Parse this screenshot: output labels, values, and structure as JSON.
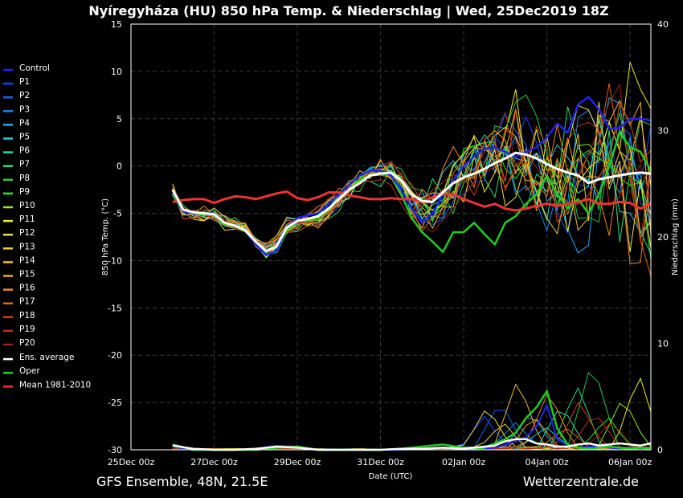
{
  "chart_data": {
    "type": "line",
    "title": "Nyíregyháza  (HU)  850 hPa Temp. & Niederschlag | Wed, 25Dec2019 18Z",
    "ylabel": "850 hPa Temp. (°C)",
    "y2label": "Niederschlag (mm)",
    "xlabel": "Date (UTC)",
    "ylim": [
      -30,
      15
    ],
    "y2lim": [
      0,
      40
    ],
    "yticks": [
      "15",
      "10",
      "5",
      "0",
      "-5",
      "-10",
      "-15",
      "-20",
      "-25",
      "-30"
    ],
    "y2ticks": [
      "40",
      "30",
      "20",
      "10",
      "0"
    ],
    "xlim_days": [
      0,
      12.5
    ],
    "xticks": [
      {
        "day": 0,
        "label": "25Dec 00z"
      },
      {
        "day": 2,
        "label": "27Dec 00z"
      },
      {
        "day": 4,
        "label": "29Dec 00z"
      },
      {
        "day": 6,
        "label": "31Dec 00z"
      },
      {
        "day": 8,
        "label": "02Jan 00z"
      },
      {
        "day": 10,
        "label": "04Jan 00z"
      },
      {
        "day": 12,
        "label": "06Jan 00z"
      }
    ],
    "grid": true,
    "legend_position": "left",
    "legend": [
      {
        "label": "Control",
        "color": "#2222ee"
      },
      {
        "label": "P1",
        "color": "#1144ff"
      },
      {
        "label": "P2",
        "color": "#1166ee"
      },
      {
        "label": "P3",
        "color": "#1188ee"
      },
      {
        "label": "P4",
        "color": "#22aaee"
      },
      {
        "label": "P5",
        "color": "#22ccdd"
      },
      {
        "label": "P6",
        "color": "#22ddaa"
      },
      {
        "label": "P7",
        "color": "#22dd77"
      },
      {
        "label": "P8",
        "color": "#22cc44"
      },
      {
        "label": "P9",
        "color": "#22ee22"
      },
      {
        "label": "P10",
        "color": "#88ee22"
      },
      {
        "label": "P11",
        "color": "#eeee22"
      },
      {
        "label": "P12",
        "color": "#eedd55"
      },
      {
        "label": "P13",
        "color": "#eecc33"
      },
      {
        "label": "P14",
        "color": "#eebb33"
      },
      {
        "label": "P15",
        "color": "#eeaa11"
      },
      {
        "label": "P16",
        "color": "#ee8822"
      },
      {
        "label": "P17",
        "color": "#dd6611"
      },
      {
        "label": "P18",
        "color": "#cc4411"
      },
      {
        "label": "P19",
        "color": "#bb3311"
      },
      {
        "label": "P20",
        "color": "#992211"
      },
      {
        "label": "Ens. average",
        "color": "#ffffff"
      },
      {
        "label": "Oper",
        "color": "#22cc22"
      },
      {
        "label": "Mean 1981-2010",
        "color": "#ee3333"
      }
    ],
    "x_days": [
      1,
      1.25,
      1.5,
      1.75,
      2,
      2.25,
      2.5,
      2.75,
      3,
      3.25,
      3.5,
      3.75,
      4,
      4.25,
      4.5,
      4.75,
      5,
      5.25,
      5.5,
      5.75,
      6,
      6.25,
      6.5,
      6.75,
      7,
      7.25,
      7.5,
      7.75,
      8,
      8.25,
      8.5,
      8.75,
      9,
      9.25,
      9.5,
      9.75,
      10,
      10.25,
      10.5,
      10.75,
      11,
      11.25,
      11.5,
      11.75,
      12,
      12.25,
      12.5
    ],
    "series": [
      {
        "name": "Control",
        "color": "#2222ee",
        "width": 2.5,
        "values": [
          -2.6,
          -4.8,
          -5.0,
          -5.0,
          -5.0,
          -6.0,
          -6.3,
          -6.8,
          -8.3,
          -9.4,
          -9.0,
          -6.5,
          -5.5,
          -5.2,
          -5.0,
          -4.0,
          -3.0,
          -2.0,
          -1.0,
          -0.5,
          -0.5,
          -1.0,
          -2.5,
          -4.5,
          -6.0,
          -5.0,
          -3.0,
          -1.5,
          0.0,
          1.0,
          1.8,
          2.0,
          1.5,
          1.0,
          1.5,
          2.0,
          3.0,
          4.5,
          3.5,
          6.5,
          7.3,
          6.0,
          4.0,
          4.0,
          5.0,
          5.0,
          4.8
        ]
      },
      {
        "name": "Ens. average",
        "color": "#ffffff",
        "width": 3,
        "values": [
          -2.5,
          -4.6,
          -4.9,
          -5.0,
          -5.1,
          -6.0,
          -6.3,
          -6.8,
          -8.0,
          -9.0,
          -8.5,
          -6.5,
          -5.8,
          -5.6,
          -5.3,
          -4.5,
          -3.5,
          -2.5,
          -1.8,
          -1.0,
          -0.8,
          -0.7,
          -1.5,
          -3.0,
          -3.7,
          -3.8,
          -2.8,
          -1.8,
          -1.2,
          -0.8,
          -0.3,
          0.3,
          0.8,
          1.4,
          1.2,
          0.8,
          0.2,
          -0.3,
          -0.7,
          -1.0,
          -1.8,
          -1.4,
          -1.2,
          -1.0,
          -0.8,
          -0.7,
          -0.8
        ]
      },
      {
        "name": "Oper",
        "color": "#22cc22",
        "width": 2.5,
        "values": [
          -3.0,
          -4.8,
          -5.0,
          -5.1,
          -5.2,
          -6.1,
          -6.4,
          -6.9,
          -8.2,
          -9.3,
          -9.1,
          -6.8,
          -5.8,
          -5.7,
          -5.5,
          -4.6,
          -3.5,
          -2.5,
          -1.5,
          -1.0,
          -0.8,
          -1.0,
          -3.0,
          -5.5,
          -7.0,
          -8.0,
          -9.1,
          -7.0,
          -7.0,
          -6.0,
          -7.2,
          -8.3,
          -6.0,
          -5.3,
          -4.0,
          -3.0,
          -1.0,
          -3.0,
          -4.5,
          -3.5,
          -5.0,
          -3.0,
          0.0,
          3.5,
          2.0,
          1.5,
          -0.5
        ]
      },
      {
        "name": "Mean 1981-2010",
        "color": "#ee3333",
        "width": 3,
        "values": [
          -3.8,
          -3.6,
          -3.5,
          -3.5,
          -3.9,
          -3.5,
          -3.2,
          -3.3,
          -3.5,
          -3.2,
          -2.9,
          -2.7,
          -3.4,
          -3.6,
          -3.3,
          -2.8,
          -2.8,
          -3.1,
          -3.3,
          -3.5,
          -3.5,
          -3.4,
          -3.5,
          -3.5,
          -3.8,
          -3.3,
          -3.0,
          -3.0,
          -3.5,
          -3.9,
          -4.3,
          -4.0,
          -4.5,
          -4.7,
          -4.5,
          -4.2,
          -4.0,
          -4.2,
          -4.0,
          -3.8,
          -3.5,
          -4.0,
          -4.0,
          -3.8,
          -3.9,
          -4.5,
          -4.0
        ]
      }
    ],
    "members": [
      {
        "color": "#1144ff",
        "spread": 1.0,
        "seed": 1,
        "phase": 0.3
      },
      {
        "color": "#1166ee",
        "spread": 1.2,
        "seed": 2,
        "phase": 1.1
      },
      {
        "color": "#1188ee",
        "spread": 1.4,
        "seed": 3,
        "phase": 2.0
      },
      {
        "color": "#22aaee",
        "spread": 1.6,
        "seed": 4,
        "phase": 0.7
      },
      {
        "color": "#22ccdd",
        "spread": 1.3,
        "seed": 5,
        "phase": 2.6
      },
      {
        "color": "#22ddaa",
        "spread": 1.1,
        "seed": 6,
        "phase": 1.5
      },
      {
        "color": "#22dd77",
        "spread": 1.7,
        "seed": 7,
        "phase": 3.1
      },
      {
        "color": "#22cc44",
        "spread": 1.5,
        "seed": 8,
        "phase": 0.1
      },
      {
        "color": "#22ee22",
        "spread": 1.2,
        "seed": 9,
        "phase": 1.9
      },
      {
        "color": "#88ee22",
        "spread": 1.0,
        "seed": 10,
        "phase": 2.3
      },
      {
        "color": "#eeee22",
        "spread": 1.8,
        "seed": 11,
        "phase": 0.5
      },
      {
        "color": "#eedd55",
        "spread": 1.4,
        "seed": 12,
        "phase": 2.9
      },
      {
        "color": "#eecc33",
        "spread": 1.6,
        "seed": 13,
        "phase": 1.3
      },
      {
        "color": "#eebb33",
        "spread": 1.3,
        "seed": 14,
        "phase": 0.9
      },
      {
        "color": "#eeaa11",
        "spread": 1.1,
        "seed": 15,
        "phase": 2.1
      },
      {
        "color": "#ee8822",
        "spread": 1.5,
        "seed": 16,
        "phase": 3.3
      },
      {
        "color": "#dd6611",
        "spread": 1.9,
        "seed": 17,
        "phase": 1.7
      },
      {
        "color": "#cc4411",
        "spread": 1.2,
        "seed": 18,
        "phase": 0.4
      },
      {
        "color": "#bb3311",
        "spread": 1.6,
        "seed": 19,
        "phase": 2.7
      },
      {
        "color": "#992211",
        "spread": 1.4,
        "seed": 20,
        "phase": 1.0
      }
    ],
    "precip_mm": {
      "x_days": [
        1,
        1.5,
        2,
        2.5,
        3,
        3.5,
        4,
        4.5,
        5,
        5.5,
        6,
        6.5,
        7,
        7.5,
        8,
        8.25,
        8.5,
        8.75,
        9,
        9.25,
        9.5,
        9.75,
        10,
        10.25,
        10.5,
        10.75,
        11,
        11.25,
        11.5,
        11.75,
        12,
        12.25,
        12.5
      ],
      "ens_average": [
        0.4,
        0.1,
        0,
        0,
        0.1,
        0.3,
        0.2,
        0,
        0,
        0,
        0,
        0.1,
        0.1,
        0.2,
        0.1,
        0.2,
        0.3,
        0.4,
        0.8,
        1.0,
        1.0,
        0.6,
        0.5,
        0.3,
        0.3,
        0.5,
        0.6,
        0.4,
        0.5,
        0.6,
        0.5,
        0.4,
        0.6
      ],
      "oper": [
        0.5,
        0,
        0,
        0,
        0,
        0.2,
        0.3,
        0,
        0,
        0,
        0,
        0.1,
        0.3,
        0.5,
        0.2,
        0.1,
        0.2,
        0.6,
        1.0,
        1.6,
        3.0,
        4.0,
        5.5,
        2.0,
        0.5,
        0.2,
        0.1,
        0.2,
        0.3,
        0.2,
        0.1,
        0.2,
        0.1
      ],
      "control": [
        0.3,
        0,
        0,
        0,
        0.1,
        0.4,
        0.3,
        0,
        0,
        0,
        0,
        0,
        0.1,
        0.2,
        0.1,
        0,
        0.1,
        0.2,
        0.5,
        0.8,
        1.2,
        2.2,
        4.2,
        1.0,
        0.4,
        0.2,
        0.3,
        0.3,
        0.2,
        0.1,
        0.2,
        0.1,
        0.2
      ],
      "member_peaks": [
        3.0,
        4.5,
        2.5,
        3.5,
        2.0,
        4.0,
        6.0,
        8.5,
        3.0,
        5.0,
        7.0,
        4.0,
        2.5,
        6.5,
        3.0,
        5.5,
        2.0,
        4.5,
        3.5,
        2.5
      ]
    }
  },
  "footer": {
    "model": "GFS Ensemble, 48N, 21.5E",
    "source": "Wetterzentrale.de"
  }
}
